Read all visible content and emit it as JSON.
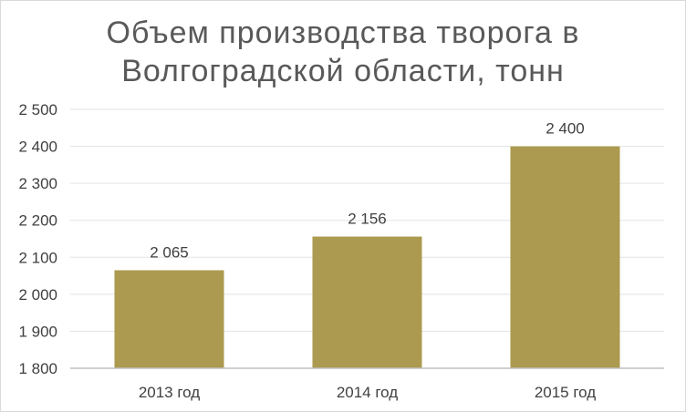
{
  "chart_data": {
    "type": "bar",
    "title_lines": [
      "Объем производства творога в",
      "Волгоградской области, тонн"
    ],
    "categories": [
      "2013 год",
      "2014 год",
      "2015 год"
    ],
    "values": [
      2065,
      2156,
      2400
    ],
    "value_labels": [
      "2 065",
      "2 156",
      "2 400"
    ],
    "ylim": [
      1800,
      2500
    ],
    "yticks": [
      1800,
      1900,
      2000,
      2100,
      2200,
      2300,
      2400,
      2500
    ],
    "ytick_labels": [
      "1 800",
      "1 900",
      "2 000",
      "2 100",
      "2 200",
      "2 300",
      "2 400",
      "2 500"
    ],
    "grid": true,
    "legend": "none",
    "bar_color": "#ab9a4f",
    "grid_color": "#e3e3e3",
    "axis_color": "#bfbfbf",
    "text_color": "#404040"
  }
}
